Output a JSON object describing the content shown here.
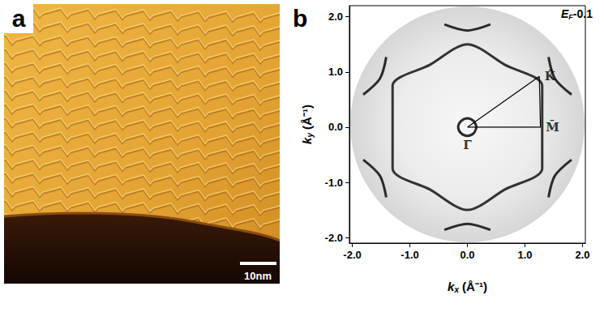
{
  "panel_a": {
    "label": "a",
    "scale_bar": "10nm"
  },
  "chart_data": {
    "type": "line",
    "panel_label": "b",
    "annotation": {
      "text": "E",
      "subscript": "F",
      "suffix": "-0.1"
    },
    "xlabel": {
      "text": "k",
      "subscript": "x",
      "suffix": " (Å⁻¹)"
    },
    "ylabel": {
      "text": "k",
      "subscript": "y",
      "suffix": " (Å⁻¹)"
    },
    "xlim": [
      -2.05,
      2.05
    ],
    "ylim": [
      -2.1,
      2.2
    ],
    "xticks": [
      {
        "value": -2,
        "label": "-2.0"
      },
      {
        "value": -1,
        "label": "-1.0"
      },
      {
        "value": 0,
        "label": "0.0"
      },
      {
        "value": 1,
        "label": "1.0"
      },
      {
        "value": 2,
        "label": "2.0"
      }
    ],
    "yticks": [
      {
        "value": -2,
        "label": "-2.0"
      },
      {
        "value": -1,
        "label": "-1.0"
      },
      {
        "value": 0,
        "label": "0.0"
      },
      {
        "value": 1,
        "label": "1.0"
      },
      {
        "value": 2,
        "label": "2.0"
      }
    ],
    "grid": false,
    "series": [
      {
        "color": "#2a2a2a",
        "line_style": "solid",
        "values": [
          [
            0.16,
            0
          ],
          [
            0.11,
            0.11
          ],
          [
            0,
            0.16
          ],
          [
            -0.11,
            0.11
          ],
          [
            -0.16,
            0
          ],
          [
            -0.11,
            -0.11
          ],
          [
            0,
            -0.16
          ],
          [
            0.11,
            -0.11
          ],
          [
            0.16,
            0
          ]
        ]
      },
      {
        "color": "#333333",
        "line_style": "solid",
        "values": [
          [
            1.3,
            0
          ],
          [
            1.3,
            0.75
          ],
          [
            0.65,
            1.13
          ],
          [
            0,
            1.5
          ],
          [
            -0.65,
            1.13
          ],
          [
            -1.3,
            0.75
          ],
          [
            -1.3,
            0
          ],
          [
            -1.3,
            -0.75
          ],
          [
            -0.65,
            -1.13
          ],
          [
            0,
            -1.5
          ],
          [
            0.65,
            -1.13
          ],
          [
            1.3,
            -0.75
          ],
          [
            1.3,
            0
          ]
        ]
      },
      {
        "color": "#2a2a2a",
        "line_style": "solid",
        "values": [
          [
            1.81,
            0.59
          ],
          [
            1.52,
            0.88
          ],
          [
            1.41,
            1.27
          ]
        ]
      },
      {
        "color": "#2a2a2a",
        "line_style": "solid",
        "values": [
          [
            0.4,
            1.86
          ],
          [
            0,
            1.75
          ],
          [
            -0.4,
            1.86
          ]
        ]
      },
      {
        "color": "#2a2a2a",
        "line_style": "solid",
        "values": [
          [
            -1.41,
            1.27
          ],
          [
            -1.52,
            0.88
          ],
          [
            -1.81,
            0.59
          ]
        ]
      },
      {
        "color": "#2a2a2a",
        "line_style": "solid",
        "values": [
          [
            -1.81,
            -0.59
          ],
          [
            -1.52,
            -0.88
          ],
          [
            -1.41,
            -1.27
          ]
        ]
      },
      {
        "color": "#2a2a2a",
        "line_style": "solid",
        "values": [
          [
            -0.4,
            -1.86
          ],
          [
            0,
            -1.75
          ],
          [
            0.4,
            -1.86
          ]
        ]
      },
      {
        "color": "#2a2a2a",
        "line_style": "solid",
        "values": [
          [
            1.41,
            -1.27
          ],
          [
            1.52,
            -0.88
          ],
          [
            1.81,
            -0.59
          ]
        ]
      }
    ],
    "points": [
      {
        "label": "Γ̄",
        "x": 0,
        "y": 0
      },
      {
        "label": "K̄",
        "x": 1.25,
        "y": 0.92
      },
      {
        "label": "M̄",
        "x": 1.27,
        "y": 0.0
      }
    ]
  }
}
